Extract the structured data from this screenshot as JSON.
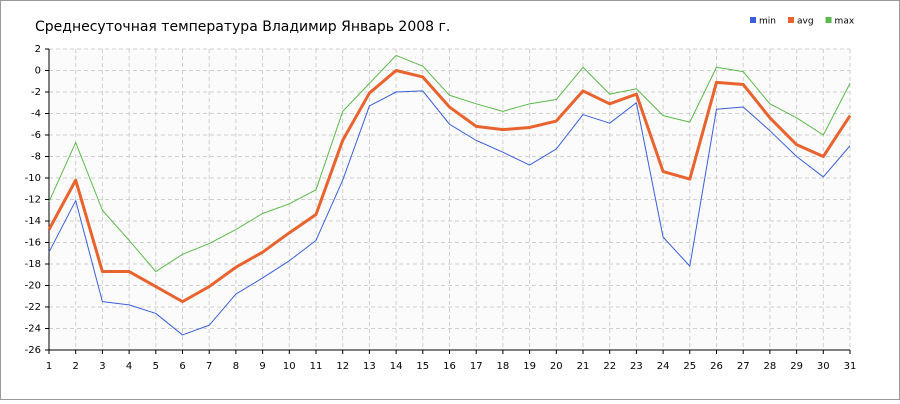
{
  "chart_data": {
    "type": "line",
    "title": "Среднесуточная температура Владимир  Январь 2008 г.",
    "x": [
      1,
      2,
      3,
      4,
      5,
      6,
      7,
      8,
      9,
      10,
      11,
      12,
      13,
      14,
      15,
      16,
      17,
      18,
      19,
      20,
      21,
      22,
      23,
      24,
      25,
      26,
      27,
      28,
      29,
      30,
      31
    ],
    "xlim": [
      1,
      31
    ],
    "xticks": [
      1,
      2,
      3,
      4,
      5,
      6,
      7,
      8,
      9,
      10,
      11,
      12,
      13,
      14,
      15,
      16,
      17,
      18,
      19,
      20,
      21,
      22,
      23,
      24,
      25,
      26,
      27,
      28,
      29,
      30,
      31
    ],
    "ylim": [
      -26,
      2
    ],
    "yticks": [
      -26,
      -24,
      -22,
      -20,
      -18,
      -16,
      -14,
      -12,
      -10,
      -8,
      -6,
      -4,
      -2,
      0,
      2
    ],
    "grid": true,
    "legend": "top-right",
    "series": [
      {
        "name": "min",
        "color": "#3a5fd9",
        "values": [
          -16.9,
          -12.1,
          -21.5,
          -21.8,
          -22.6,
          -24.6,
          -23.7,
          -20.8,
          -19.3,
          -17.7,
          -15.8,
          -10.2,
          -3.3,
          -2.0,
          -1.9,
          -5.0,
          -6.5,
          -7.6,
          -8.8,
          -7.3,
          -4.1,
          -4.9,
          -3.0,
          -15.5,
          -18.2,
          -3.6,
          -3.4,
          -5.6,
          -8.0,
          -9.9,
          -7.0
        ]
      },
      {
        "name": "avg",
        "color": "#e8632e",
        "values": [
          -14.8,
          -10.2,
          -18.7,
          -18.7,
          -20.1,
          -21.5,
          -20.1,
          -18.3,
          -16.9,
          -15.1,
          -13.4,
          -6.5,
          -2.1,
          0.0,
          -0.6,
          -3.4,
          -5.2,
          -5.5,
          -5.3,
          -4.7,
          -1.9,
          -3.1,
          -2.2,
          -9.4,
          -10.1,
          -1.1,
          -1.3,
          -4.4,
          -6.9,
          -8.0,
          -4.2
        ]
      },
      {
        "name": "max",
        "color": "#5cb84a",
        "values": [
          -12.2,
          -6.7,
          -13.0,
          -15.8,
          -18.7,
          -17.1,
          -16.1,
          -14.8,
          -13.3,
          -12.4,
          -11.1,
          -3.8,
          -1.2,
          1.4,
          0.4,
          -2.3,
          -3.1,
          -3.8,
          -3.1,
          -2.7,
          0.3,
          -2.2,
          -1.7,
          -4.2,
          -4.8,
          0.3,
          -0.1,
          -3.1,
          -4.4,
          -6.0,
          -1.2
        ]
      }
    ]
  }
}
